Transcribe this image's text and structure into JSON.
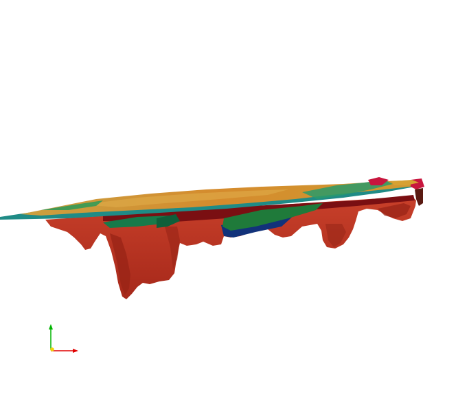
{
  "viewer": {
    "background": "#ffffff",
    "model": {
      "name": "3d-geological-surface-model",
      "colors": {
        "base_red": "#b8301f",
        "base_red_dark": "#8e1d12",
        "top_orange": "#d08a2a",
        "top_gold": "#d7a132",
        "teal": "#1f8b86",
        "green": "#1f7a3a",
        "dark_green": "#0f5f3a",
        "blue": "#12327a",
        "crimson": "#c8163e",
        "dark_red": "#7a0f12"
      }
    },
    "axes": {
      "x_color": "#e00000",
      "y_color": "#00b400",
      "z_color": "#f2d20a"
    }
  }
}
